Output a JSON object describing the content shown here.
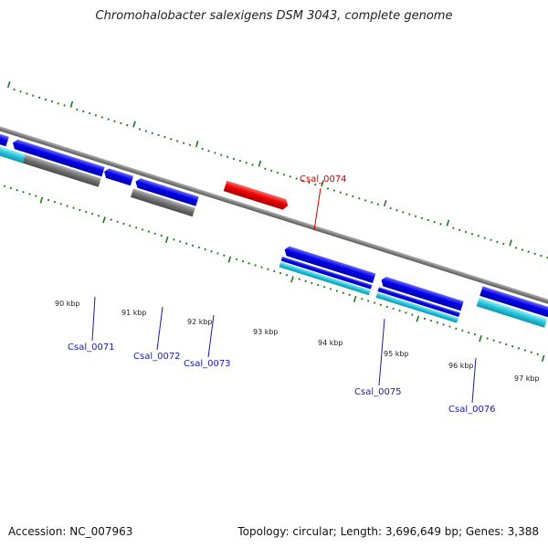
{
  "title": "Chromohalobacter salexigens DSM 3043, complete genome",
  "footer": {
    "accession": "Accession: NC_007963",
    "summary": "Topology: circular; Length: 3,696,649 bp; Genes: 3,388"
  },
  "colors": {
    "backbone": "#808080",
    "forward_gene": "#0000ee",
    "reverse_gene": "#0000ee",
    "highlight_gene": "#ee0000",
    "cds_band": "#22c4dc",
    "gray_band": "#6e6e6e",
    "tick": "#1a7a1a",
    "label_blue": "#1a1aaa",
    "label_red": "#cc0000"
  },
  "scale_labels": [
    "90 kbp",
    "91 kbp",
    "92 kbp",
    "93 kbp",
    "94 kbp",
    "95 kbp",
    "96 kbp",
    "97 kbp"
  ],
  "gene_labels": [
    {
      "name": "Csal_0071",
      "color": "blue"
    },
    {
      "name": "Csal_0072",
      "color": "blue"
    },
    {
      "name": "Csal_0073",
      "color": "blue"
    },
    {
      "name": "Csal_0074",
      "color": "red"
    },
    {
      "name": "Csal_0075",
      "color": "blue"
    },
    {
      "name": "Csal_0076",
      "color": "blue"
    }
  ]
}
